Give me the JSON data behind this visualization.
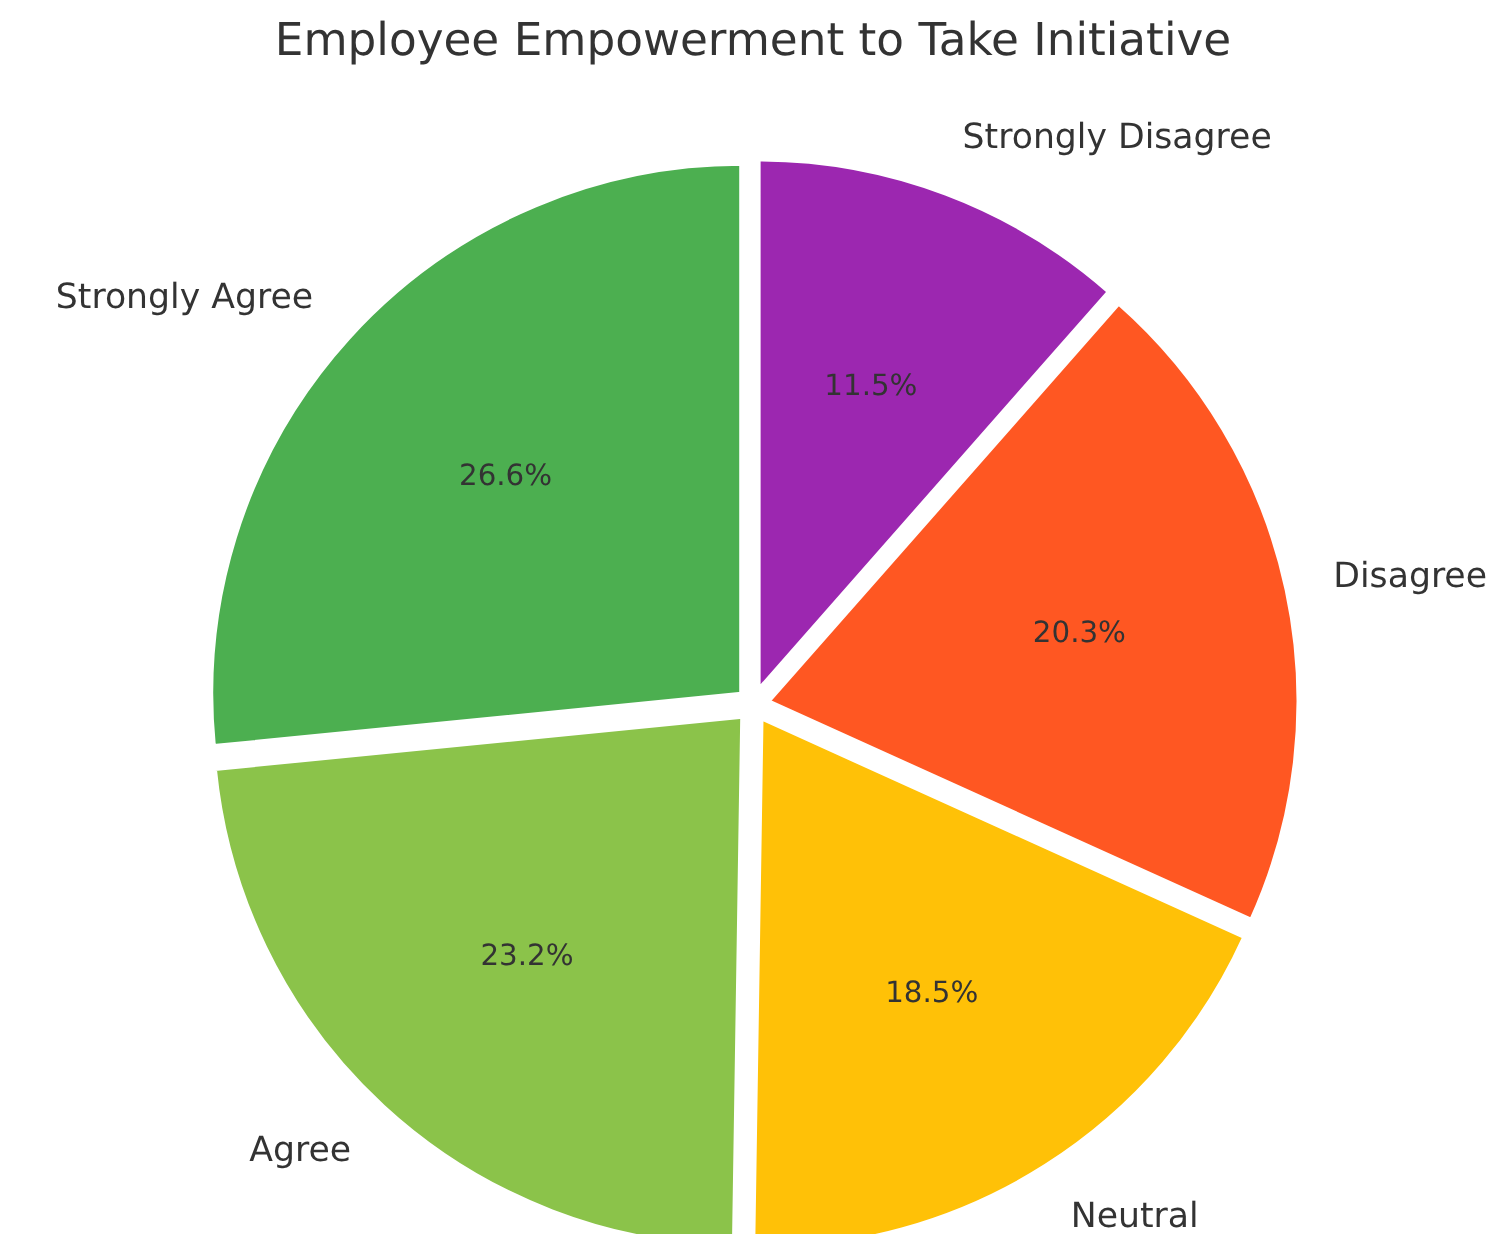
{
  "chart_data": {
    "type": "pie",
    "title": "Employee Empowerment to Take Initiative",
    "categories": [
      "Strongly Agree",
      "Agree",
      "Neutral",
      "Disagree",
      "Strongly Disagree"
    ],
    "values": [
      26.6,
      23.2,
      18.5,
      20.3,
      11.5
    ],
    "colors": [
      "#4caf50",
      "#8bc34a",
      "#ffc107",
      "#ff5722",
      "#9c27b0"
    ],
    "value_labels": [
      "26.6%",
      "23.2%",
      "18.5%",
      "20.3%",
      "11.5%"
    ]
  }
}
